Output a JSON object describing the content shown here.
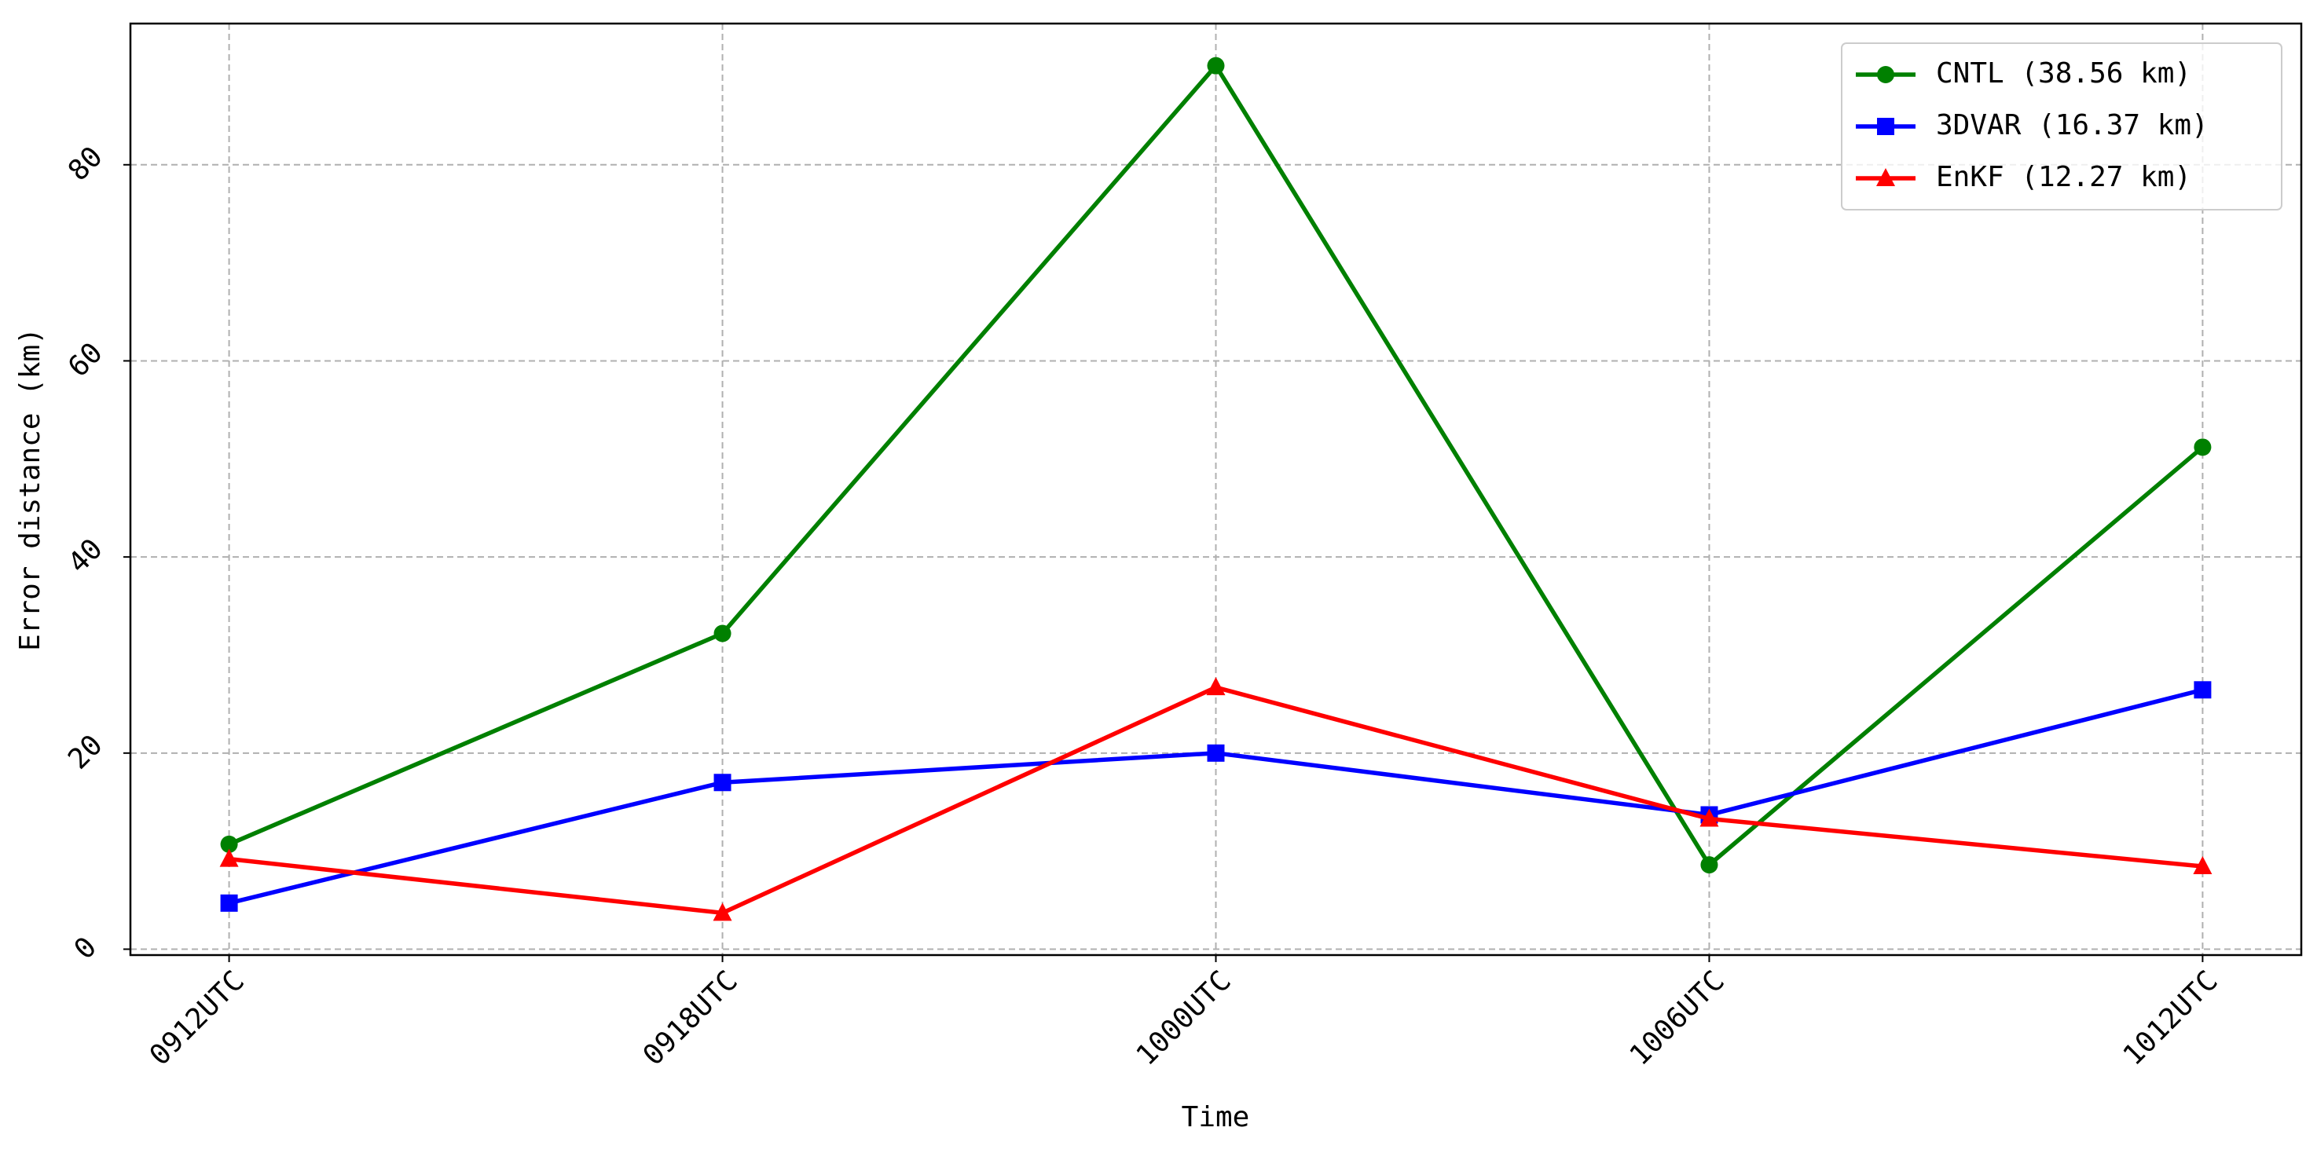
{
  "chart_data": {
    "type": "line",
    "categories": [
      "0912UTC",
      "0918UTC",
      "1000UTC",
      "1006UTC",
      "1012UTC"
    ],
    "series": [
      {
        "name": "CNTL (38.56 km)",
        "color": "#008000",
        "marker": "circle",
        "values": [
          10.7,
          32.2,
          90.1,
          8.6,
          51.2
        ]
      },
      {
        "name": "3DVAR (16.37 km)",
        "color": "#0000ff",
        "marker": "square",
        "values": [
          4.7,
          17.0,
          20.0,
          13.7,
          26.45
        ]
      },
      {
        "name": "EnKF (12.27 km)",
        "color": "#ff0000",
        "marker": "triangle",
        "values": [
          9.2,
          3.7,
          26.7,
          13.3,
          8.45
        ]
      }
    ],
    "xlabel": "Time",
    "ylabel": "Error distance (km)",
    "ylim": [
      -0.6,
      94.4
    ],
    "yticks": [
      0,
      20,
      40,
      60,
      80
    ],
    "grid": true,
    "legend": "upper right"
  }
}
